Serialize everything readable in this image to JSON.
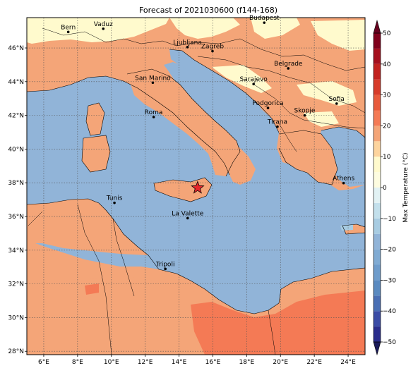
{
  "title": "Forecast of 2021030600 (f144-168)",
  "map": {
    "lon_range": [
      5,
      25
    ],
    "lat_range": [
      27.8,
      47.8
    ],
    "lon_ticks": [
      6,
      8,
      10,
      12,
      14,
      16,
      18,
      20,
      22,
      24
    ],
    "lon_tick_labels": [
      "6°E",
      "8°E",
      "10°E",
      "12°E",
      "14°E",
      "16°E",
      "18°E",
      "20°E",
      "22°E",
      "24°E"
    ],
    "lat_ticks": [
      28,
      30,
      32,
      34,
      36,
      38,
      40,
      42,
      44,
      46
    ],
    "lat_tick_labels": [
      "28°N",
      "30°N",
      "32°N",
      "34°N",
      "36°N",
      "38°N",
      "40°N",
      "42°N",
      "44°N",
      "46°N"
    ],
    "grid": true,
    "colors": {
      "sea": "#91b4d8",
      "land_warm": "#f4a578",
      "land_mild": "#fffacd",
      "land_hot": "#f47a55"
    },
    "marker": {
      "icon": "star-icon",
      "lon": 15.1,
      "lat": 37.7,
      "color": "#e8262b"
    }
  },
  "cities": [
    {
      "name": "Bern",
      "lon": 7.45,
      "lat": 46.95
    },
    {
      "name": "Vaduz",
      "lon": 9.52,
      "lat": 47.14
    },
    {
      "name": "Budapest",
      "lon": 19.04,
      "lat": 47.5
    },
    {
      "name": "Ljubljana",
      "lon": 14.5,
      "lat": 46.05
    },
    {
      "name": "Zagreb",
      "lon": 15.98,
      "lat": 45.81
    },
    {
      "name": "Belgrade",
      "lon": 20.46,
      "lat": 44.79
    },
    {
      "name": "San Marino",
      "lon": 12.45,
      "lat": 43.94
    },
    {
      "name": "Sarajevo",
      "lon": 18.41,
      "lat": 43.86
    },
    {
      "name": "Sofia",
      "lon": 23.32,
      "lat": 42.7
    },
    {
      "name": "Podgorica",
      "lon": 19.26,
      "lat": 42.44
    },
    {
      "name": "Skopje",
      "lon": 21.43,
      "lat": 42.0
    },
    {
      "name": "Roma",
      "lon": 12.5,
      "lat": 41.9
    },
    {
      "name": "Tirana",
      "lon": 19.82,
      "lat": 41.33
    },
    {
      "name": "Athens",
      "lon": 23.73,
      "lat": 37.98
    },
    {
      "name": "Tunis",
      "lon": 10.18,
      "lat": 36.81
    },
    {
      "name": "La Valette",
      "lon": 14.51,
      "lat": 35.9
    },
    {
      "name": "Tripoli",
      "lon": 13.19,
      "lat": 32.89
    }
  ],
  "colorbar": {
    "label": "Max Temperature (°C)",
    "ticks": [
      -50,
      -40,
      -30,
      -20,
      -10,
      0,
      10,
      20,
      30,
      40,
      50
    ],
    "tick_labels": [
      "−50",
      "−40",
      "−30",
      "−20",
      "−10",
      "0",
      "10",
      "20",
      "30",
      "40",
      "50"
    ],
    "extend": "both",
    "bins": [
      {
        "from": -50,
        "to": -45,
        "color": "#2a2d8c"
      },
      {
        "from": -45,
        "to": -40,
        "color": "#3b4ca6"
      },
      {
        "from": -40,
        "to": -35,
        "color": "#4a6fb4"
      },
      {
        "from": -35,
        "to": -30,
        "color": "#5a8ac0"
      },
      {
        "from": -30,
        "to": -25,
        "color": "#6e9ccb"
      },
      {
        "from": -25,
        "to": -20,
        "color": "#80abd3"
      },
      {
        "from": -20,
        "to": -15,
        "color": "#91b4d8"
      },
      {
        "from": -15,
        "to": -10,
        "color": "#a8cce2"
      },
      {
        "from": -10,
        "to": -5,
        "color": "#c3e0ec"
      },
      {
        "from": -5,
        "to": 0,
        "color": "#e2f2f4"
      },
      {
        "from": 0,
        "to": 5,
        "color": "#fdfce0"
      },
      {
        "from": 5,
        "to": 10,
        "color": "#fffacd"
      },
      {
        "from": 10,
        "to": 15,
        "color": "#fdd49e"
      },
      {
        "from": 15,
        "to": 20,
        "color": "#f4a578"
      },
      {
        "from": 20,
        "to": 25,
        "color": "#f47a55"
      },
      {
        "from": 25,
        "to": 30,
        "color": "#e85a3c"
      },
      {
        "from": 30,
        "to": 35,
        "color": "#d73b2a"
      },
      {
        "from": 35,
        "to": 40,
        "color": "#c2221f"
      },
      {
        "from": 40,
        "to": 45,
        "color": "#a5101e"
      },
      {
        "from": 45,
        "to": 50,
        "color": "#80001c"
      }
    ],
    "under_color": "#1a1a5a",
    "over_color": "#67001f"
  }
}
